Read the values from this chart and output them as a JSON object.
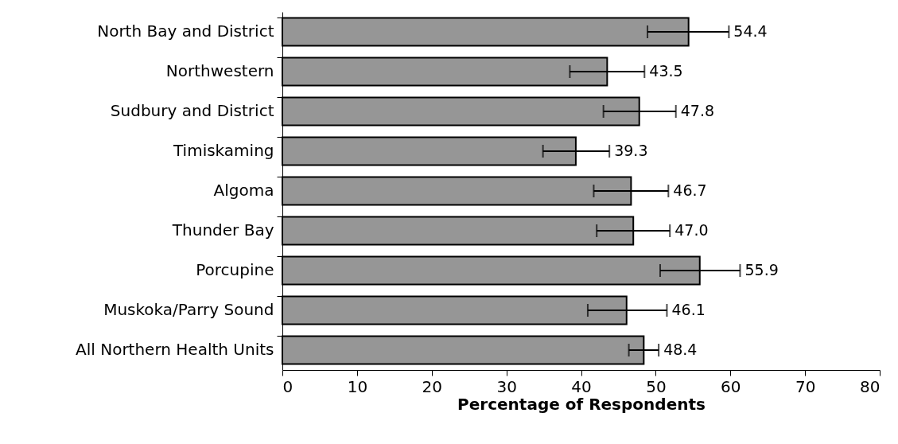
{
  "chart_data": {
    "type": "bar",
    "orientation": "horizontal",
    "xlabel": "Percentage of Respondents",
    "categories": [
      "North Bay and District",
      "Northwestern",
      "Sudbury and District",
      "Timiskaming",
      "Algoma",
      "Thunder Bay",
      "Porcupine",
      "Muskoka/Parry Sound",
      "All Northern Health Units"
    ],
    "values": [
      54.4,
      43.5,
      47.8,
      39.3,
      46.7,
      47.0,
      55.9,
      46.1,
      48.4
    ],
    "value_labels": [
      "54.4",
      "43.5",
      "47.8",
      "39.3",
      "46.7",
      "47.0",
      "55.9",
      "46.1",
      "48.4"
    ],
    "errors": [
      [
        48.9,
        59.8
      ],
      [
        38.5,
        48.5
      ],
      [
        43.0,
        52.7
      ],
      [
        34.9,
        43.8
      ],
      [
        41.7,
        51.7
      ],
      [
        42.1,
        51.9
      ],
      [
        50.6,
        61.3
      ],
      [
        40.9,
        51.5
      ],
      [
        46.4,
        50.4
      ]
    ],
    "color": "#969696",
    "xlim": [
      0,
      80
    ],
    "xticks": [
      0,
      10,
      20,
      30,
      40,
      50,
      60,
      70,
      80
    ],
    "grid": false
  }
}
